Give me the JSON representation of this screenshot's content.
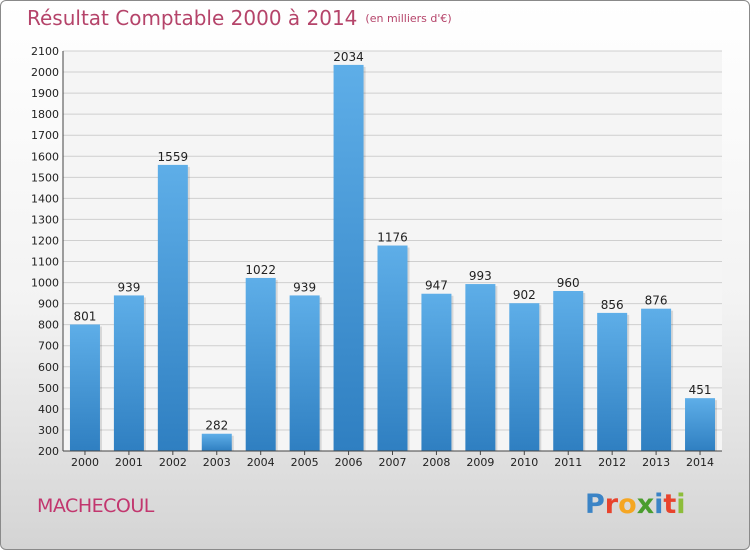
{
  "title": "Résultat Comptable 2000 à 2014",
  "title_unit": "(en milliers d'€)",
  "location": "MACHECOUL",
  "brand": {
    "letters": [
      {
        "ch": "P",
        "color": "#3b84c6"
      },
      {
        "ch": "r",
        "color": "#e8432d"
      },
      {
        "ch": "o",
        "color": "#f5a623"
      },
      {
        "ch": "x",
        "color": "#4a9d2e"
      },
      {
        "ch": "i",
        "color": "#3b84c6"
      },
      {
        "ch": "t",
        "color": "#e8432d"
      },
      {
        "ch": "i",
        "color": "#8dbd3a"
      }
    ]
  },
  "chart_data": {
    "type": "bar",
    "categories": [
      "2000",
      "2001",
      "2002",
      "2003",
      "2004",
      "2005",
      "2006",
      "2007",
      "2008",
      "2009",
      "2010",
      "2011",
      "2012",
      "2013",
      "2014"
    ],
    "values": [
      801,
      939,
      1559,
      282,
      1022,
      939,
      2034,
      1176,
      947,
      993,
      902,
      960,
      856,
      876,
      451
    ],
    "ylim": [
      200,
      2100
    ],
    "ytick_step": 100,
    "grid": true,
    "bar_color": "#3f95d8",
    "title": "Résultat Comptable 2000 à 2014",
    "xlabel": "",
    "ylabel": ""
  }
}
